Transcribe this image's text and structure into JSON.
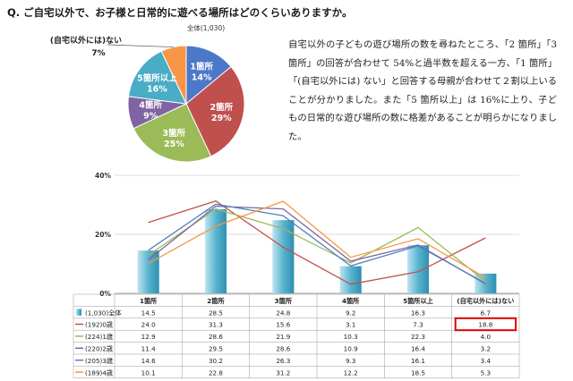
{
  "question": "Q. ご自宅以外で、お子様と日常的に遊べる場所はどのくらいありますか。",
  "description": "自宅以外の子どもの遊び場所の数を尋ねたところ、「2 箇所」「3 箇所」の回答が合わせて 54%と過半数を超える一方、「1 箇所」「(自宅以外には) ない」と回答する母親が合わせて２割以上いることが分かりました。また「5 箇所以上」は 16%に上り、子どもの日常的な遊び場所の数に格差があることが明らかになりました。",
  "chart_data": [
    {
      "type": "pie",
      "title": "全体(1,030)",
      "slices": [
        {
          "label": "1箇所",
          "value": 14,
          "value_label": "14%",
          "color": "#4c78c8"
        },
        {
          "label": "2箇所",
          "value": 29,
          "value_label": "29%",
          "color": "#c0504d"
        },
        {
          "label": "3箇所",
          "value": 25,
          "value_label": "25%",
          "color": "#9bbb59"
        },
        {
          "label": "4箇所",
          "value": 9,
          "value_label": "9%",
          "color": "#8064a2"
        },
        {
          "label": "5箇所以上",
          "value": 16,
          "value_label": "16%",
          "color": "#4bacc6"
        },
        {
          "label": "(自宅以外には)ない",
          "value": 7,
          "value_label": "7%",
          "color": "#f79646"
        }
      ]
    },
    {
      "type": "bar",
      "categories": [
        "1箇所",
        "2箇所",
        "3箇所",
        "4箇所",
        "5箇所以上",
        "(自宅以外には)ない"
      ],
      "y_ticks": [
        "40%",
        "20%",
        "0%"
      ],
      "ylim": [
        0,
        40
      ],
      "series": [
        {
          "name": "(1,030)全体",
          "kind": "bar",
          "color": "#5ab4d0",
          "values": [
            14.5,
            28.5,
            24.8,
            9.2,
            16.3,
            6.7
          ]
        },
        {
          "name": "(192)0歳",
          "kind": "line",
          "color": "#c0504d",
          "values": [
            24.0,
            31.3,
            15.6,
            3.1,
            7.3,
            18.8
          ]
        },
        {
          "name": "(224)1歳",
          "kind": "line",
          "color": "#9bbb59",
          "values": [
            12.9,
            28.6,
            21.9,
            10.3,
            22.3,
            4.0
          ]
        },
        {
          "name": "(220)2歳",
          "kind": "line",
          "color": "#8064a2",
          "values": [
            11.4,
            29.5,
            28.6,
            10.9,
            16.4,
            3.2
          ]
        },
        {
          "name": "(205)3歳",
          "kind": "line",
          "color": "#4f81bd",
          "values": [
            14.6,
            30.2,
            26.3,
            9.3,
            16.1,
            3.4
          ]
        },
        {
          "name": "(189)4歳",
          "kind": "line",
          "color": "#f79646",
          "values": [
            10.1,
            22.8,
            31.2,
            12.2,
            18.5,
            5.3
          ]
        }
      ],
      "table": {
        "rows": [
          [
            "14.5",
            "28.5",
            "24.8",
            "9.2",
            "16.3",
            "6.7"
          ],
          [
            "24.0",
            "31.3",
            "15.6",
            "3.1",
            "7.3",
            "18.8"
          ],
          [
            "12.9",
            "28.6",
            "21.9",
            "10.3",
            "22.3",
            "4.0"
          ],
          [
            "11.4",
            "29.5",
            "28.6",
            "10.9",
            "16.4",
            "3.2"
          ],
          [
            "14.6",
            "30.2",
            "26.3",
            "9.3",
            "16.1",
            "3.4"
          ],
          [
            "10.1",
            "22.8",
            "31.2",
            "12.2",
            "18.5",
            "5.3"
          ]
        ],
        "highlight": {
          "row": 1,
          "col": 5,
          "color": "#e00000"
        }
      }
    }
  ]
}
